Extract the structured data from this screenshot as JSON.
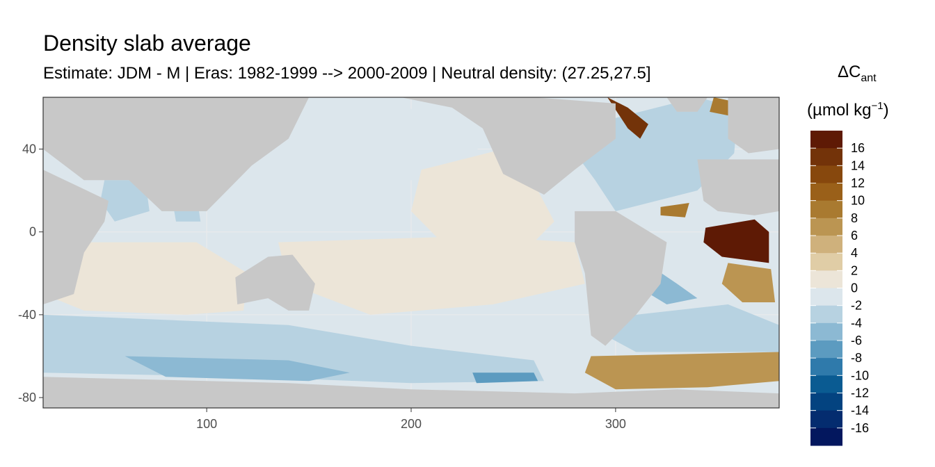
{
  "chart_data": {
    "type": "heatmap",
    "title": "Density slab average",
    "subtitle": "Estimate: JDM - M | Eras: 1982-1999 --> 2000-2009 | Neutral density: (27.25,27.5]",
    "xlabel": "",
    "ylabel": "",
    "xlim": [
      20,
      380
    ],
    "ylim": [
      -85,
      65
    ],
    "x_ticks": [
      100,
      200,
      300
    ],
    "y_ticks": [
      40,
      0,
      -40,
      -80
    ],
    "grid": true,
    "legend_position": "right",
    "legend": {
      "title_main": "ΔC",
      "title_sub": "ant",
      "unit_prefix": "(µmol kg",
      "unit_sup": "−1",
      "unit_suffix": ")",
      "labels": [
        "16",
        "14",
        "12",
        "10",
        "8",
        "6",
        "4",
        "2",
        "0",
        "-2",
        "-4",
        "-6",
        "-8",
        "-10",
        "-12",
        "-14",
        "-16"
      ],
      "bins": [
        {
          "range": [
            16,
            18
          ],
          "color": "#5e1a05"
        },
        {
          "range": [
            14,
            16
          ],
          "color": "#733309"
        },
        {
          "range": [
            12,
            14
          ],
          "color": "#87480d"
        },
        {
          "range": [
            10,
            12
          ],
          "color": "#9a6019"
        },
        {
          "range": [
            8,
            10
          ],
          "color": "#a97a30"
        },
        {
          "range": [
            6,
            8
          ],
          "color": "#bb9552"
        },
        {
          "range": [
            4,
            6
          ],
          "color": "#cfb17c"
        },
        {
          "range": [
            2,
            4
          ],
          "color": "#e0cda6"
        },
        {
          "range": [
            0,
            2
          ],
          "color": "#ece5d8"
        },
        {
          "range": [
            -2,
            0
          ],
          "color": "#dce6ec"
        },
        {
          "range": [
            -4,
            -2
          ],
          "color": "#b7d2e1"
        },
        {
          "range": [
            -6,
            -4
          ],
          "color": "#8cb9d3"
        },
        {
          "range": [
            -8,
            -6
          ],
          "color": "#5c9bc0"
        },
        {
          "range": [
            -10,
            -8
          ],
          "color": "#2f7aab"
        },
        {
          "range": [
            -12,
            -10
          ],
          "color": "#0a5b92"
        },
        {
          "range": [
            -14,
            -12
          ],
          "color": "#034380"
        },
        {
          "range": [
            -16,
            -14
          ],
          "color": "#042c6f"
        },
        {
          "range": [
            -18,
            -16
          ],
          "color": "#03175e"
        }
      ]
    },
    "colors": {
      "land": "#c8c8c8",
      "missing": "#ffffff",
      "panel_border": "#333333"
    },
    "regions": [
      {
        "label": "north-pacific",
        "value": -1,
        "points": [
          [
            128,
            55
          ],
          [
            180,
            60
          ],
          [
            245,
            58
          ],
          [
            240,
            45
          ],
          [
            225,
            35
          ],
          [
            200,
            25
          ],
          [
            160,
            22
          ],
          [
            140,
            30
          ],
          [
            128,
            42
          ]
        ]
      },
      {
        "label": "east-pacific-warm",
        "value": 1,
        "points": [
          [
            205,
            30
          ],
          [
            245,
            40
          ],
          [
            262,
            20
          ],
          [
            270,
            5
          ],
          [
            255,
            -10
          ],
          [
            215,
            -5
          ],
          [
            200,
            10
          ]
        ]
      },
      {
        "label": "equatorial-pacific",
        "value": 1,
        "points": [
          [
            135,
            -5
          ],
          [
            230,
            -2
          ],
          [
            280,
            -5
          ],
          [
            285,
            -25
          ],
          [
            240,
            -35
          ],
          [
            180,
            -40
          ],
          [
            140,
            -25
          ]
        ]
      },
      {
        "label": "indian-ocean",
        "value": 1,
        "points": [
          [
            20,
            -5
          ],
          [
            95,
            -5
          ],
          [
            120,
            -20
          ],
          [
            118,
            -38
          ],
          [
            90,
            -40
          ],
          [
            40,
            -38
          ],
          [
            20,
            -30
          ]
        ]
      },
      {
        "label": "arabian-sea",
        "value": -3,
        "points": [
          [
            50,
            25
          ],
          [
            70,
            25
          ],
          [
            72,
            10
          ],
          [
            55,
            5
          ],
          [
            48,
            15
          ]
        ]
      },
      {
        "label": "bay-of-bengal",
        "value": -3,
        "points": [
          [
            82,
            22
          ],
          [
            95,
            18
          ],
          [
            97,
            5
          ],
          [
            85,
            5
          ]
        ]
      },
      {
        "label": "southern-ocean-band",
        "value": -3,
        "points": [
          [
            20,
            -40
          ],
          [
            140,
            -45
          ],
          [
            200,
            -55
          ],
          [
            260,
            -62
          ],
          [
            265,
            -72
          ],
          [
            200,
            -73
          ],
          [
            120,
            -70
          ],
          [
            20,
            -68
          ]
        ]
      },
      {
        "label": "southern-ocean-deep",
        "value": -5,
        "points": [
          [
            60,
            -60
          ],
          [
            140,
            -62
          ],
          [
            170,
            -68
          ],
          [
            150,
            -72
          ],
          [
            80,
            -70
          ]
        ]
      },
      {
        "label": "ross-sea",
        "value": -7,
        "points": [
          [
            230,
            -68
          ],
          [
            260,
            -68
          ],
          [
            262,
            -72
          ],
          [
            232,
            -73
          ]
        ]
      },
      {
        "label": "south-atlantic",
        "value": -3,
        "points": [
          [
            310,
            -40
          ],
          [
            355,
            -35
          ],
          [
            380,
            -45
          ],
          [
            380,
            -58
          ],
          [
            310,
            -58
          ],
          [
            295,
            -50
          ]
        ]
      },
      {
        "label": "weddell-warm",
        "value": 7,
        "points": [
          [
            288,
            -60
          ],
          [
            380,
            -58
          ],
          [
            380,
            -72
          ],
          [
            345,
            -75
          ],
          [
            300,
            -76
          ],
          [
            285,
            -68
          ]
        ]
      },
      {
        "label": "north-atlantic",
        "value": -3,
        "points": [
          [
            275,
            45
          ],
          [
            300,
            55
          ],
          [
            340,
            65
          ],
          [
            360,
            60
          ],
          [
            358,
            38
          ],
          [
            340,
            20
          ],
          [
            300,
            10
          ],
          [
            290,
            25
          ]
        ]
      },
      {
        "label": "labrador",
        "value": 15,
        "points": [
          [
            296,
            65
          ],
          [
            306,
            60
          ],
          [
            316,
            52
          ],
          [
            312,
            45
          ],
          [
            306,
            50
          ]
        ]
      },
      {
        "label": "iceland",
        "value": 9,
        "points": [
          [
            348,
            65
          ],
          [
            362,
            62
          ],
          [
            356,
            56
          ],
          [
            346,
            58
          ]
        ]
      },
      {
        "label": "subtropical-atlantic",
        "value": 9,
        "points": [
          [
            322,
            12
          ],
          [
            336,
            14
          ],
          [
            334,
            7
          ],
          [
            322,
            8
          ]
        ]
      },
      {
        "label": "gulf-of-guinea",
        "value": 17,
        "points": [
          [
            344,
            2
          ],
          [
            368,
            6
          ],
          [
            375,
            0
          ],
          [
            375,
            -15
          ],
          [
            352,
            -12
          ],
          [
            343,
            -5
          ]
        ]
      },
      {
        "label": "benguela",
        "value": 7,
        "points": [
          [
            355,
            -15
          ],
          [
            376,
            -18
          ],
          [
            378,
            -34
          ],
          [
            362,
            -34
          ],
          [
            352,
            -25
          ]
        ]
      },
      {
        "label": "brazil-current",
        "value": -5,
        "points": [
          [
            300,
            -5
          ],
          [
            330,
            -25
          ],
          [
            340,
            -32
          ],
          [
            325,
            -35
          ],
          [
            300,
            -20
          ]
        ]
      }
    ],
    "land": [
      {
        "label": "antarctica",
        "points": [
          [
            20,
            -70
          ],
          [
            140,
            -73
          ],
          [
            200,
            -76
          ],
          [
            280,
            -78
          ],
          [
            330,
            -76
          ],
          [
            380,
            -78
          ],
          [
            380,
            -85
          ],
          [
            20,
            -85
          ]
        ]
      },
      {
        "label": "australia",
        "points": [
          [
            114,
            -22
          ],
          [
            130,
            -12
          ],
          [
            142,
            -11
          ],
          [
            153,
            -25
          ],
          [
            150,
            -38
          ],
          [
            140,
            -38
          ],
          [
            130,
            -32
          ],
          [
            115,
            -35
          ]
        ]
      },
      {
        "label": "south-america",
        "points": [
          [
            280,
            10
          ],
          [
            300,
            10
          ],
          [
            325,
            -5
          ],
          [
            322,
            -25
          ],
          [
            310,
            -40
          ],
          [
            295,
            -55
          ],
          [
            288,
            -50
          ],
          [
            285,
            -20
          ],
          [
            280,
            -5
          ]
        ]
      },
      {
        "label": "north-america",
        "points": [
          [
            195,
            65
          ],
          [
            260,
            65
          ],
          [
            300,
            62
          ],
          [
            300,
            45
          ],
          [
            280,
            30
          ],
          [
            265,
            18
          ],
          [
            245,
            28
          ],
          [
            235,
            50
          ],
          [
            220,
            60
          ]
        ]
      },
      {
        "label": "eurasia-west",
        "points": [
          [
            20,
            65
          ],
          [
            150,
            65
          ],
          [
            140,
            45
          ],
          [
            122,
            32
          ],
          [
            110,
            20
          ],
          [
            100,
            10
          ],
          [
            78,
            10
          ],
          [
            62,
            25
          ],
          [
            40,
            25
          ],
          [
            20,
            40
          ]
        ]
      },
      {
        "label": "europe",
        "points": [
          [
            355,
            65
          ],
          [
            380,
            65
          ],
          [
            380,
            40
          ],
          [
            365,
            38
          ],
          [
            355,
            45
          ]
        ]
      },
      {
        "label": "africa",
        "points": [
          [
            340,
            35
          ],
          [
            380,
            35
          ],
          [
            380,
            10
          ],
          [
            368,
            8
          ],
          [
            350,
            10
          ],
          [
            343,
            15
          ]
        ]
      },
      {
        "label": "africa-east",
        "points": [
          [
            20,
            30
          ],
          [
            52,
            15
          ],
          [
            50,
            5
          ],
          [
            40,
            -10
          ],
          [
            35,
            -30
          ],
          [
            20,
            -35
          ]
        ]
      },
      {
        "label": "greenland",
        "points": [
          [
            325,
            65
          ],
          [
            345,
            65
          ],
          [
            340,
            58
          ],
          [
            330,
            58
          ]
        ]
      }
    ]
  }
}
